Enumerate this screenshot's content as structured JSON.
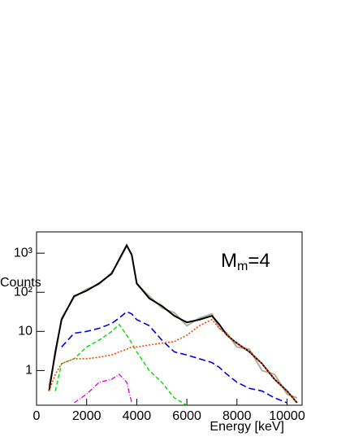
{
  "chart_data": {
    "type": "line",
    "y_label": "Counts",
    "x_label": "Energy [keV]",
    "annotation": {
      "main": "M",
      "sub": "m",
      "rest": "=4"
    },
    "log_y": true,
    "xlim": [
      0,
      10600
    ],
    "ylim": [
      0.13,
      3500
    ],
    "xticks": [
      0,
      2000,
      4000,
      6000,
      8000,
      10000
    ],
    "yticks": [
      1,
      10,
      {
        "value": 100,
        "label": "10²"
      },
      {
        "value": 1000,
        "label": "10³"
      }
    ],
    "x": [
      500,
      750,
      1000,
      1500,
      2000,
      2500,
      3000,
      3300,
      3600,
      3800,
      4000,
      4500,
      5000,
      5500,
      6000,
      6500,
      7000,
      7300,
      7600,
      8000,
      8500,
      9000,
      9500,
      10000,
      10400
    ],
    "series": [
      {
        "color": "#b5aca0",
        "dash": "none",
        "width": 2,
        "values": [
          0.4,
          2.5,
          22,
          75,
          120,
          160,
          320,
          650,
          1500,
          950,
          160,
          80,
          40,
          30,
          14,
          22,
          28,
          12,
          9,
          4,
          3.5,
          1,
          0.8,
          0.25,
          0.2
        ]
      },
      {
        "color": "#000000",
        "dash": "none",
        "width": 2,
        "values": [
          0.3,
          3,
          20,
          80,
          110,
          170,
          300,
          700,
          1600,
          900,
          170,
          70,
          45,
          25,
          17,
          20,
          25,
          15,
          8,
          5,
          3,
          1.5,
          0.6,
          0.3,
          0.15
        ]
      },
      {
        "color": "#0000ee",
        "dash": "8,4",
        "width": 1.6,
        "values": [
          null,
          null,
          4,
          9,
          10,
          12,
          16,
          22,
          32,
          28,
          20,
          14,
          6,
          3,
          2.5,
          2,
          1.6,
          1.2,
          0.8,
          0.5,
          0.35,
          0.3,
          0.2,
          0.15,
          null
        ]
      },
      {
        "color": "#00dd00",
        "dash": "5,3",
        "width": 1.4,
        "values": [
          null,
          0.3,
          1.5,
          2,
          4,
          6,
          10,
          15,
          8,
          5,
          3,
          1,
          0.5,
          0.2,
          0.13,
          null,
          null,
          null,
          null,
          null,
          null,
          null,
          null,
          null,
          null
        ]
      },
      {
        "color": "#ff4400",
        "dash": "2,2",
        "width": 1.6,
        "values": [
          0.3,
          0.8,
          1.5,
          2,
          2,
          2.2,
          2.5,
          3,
          3.5,
          4,
          4,
          4.5,
          5,
          5.5,
          8,
          14,
          20,
          12,
          8,
          5,
          3,
          1.5,
          0.6,
          0.3,
          0.15
        ]
      },
      {
        "color": "#dd00dd",
        "dash": "6,2,1,2",
        "width": 1.3,
        "values": [
          null,
          null,
          null,
          0.15,
          0.25,
          0.5,
          0.6,
          0.8,
          0.5,
          0.15,
          null,
          null,
          null,
          null,
          null,
          null,
          null,
          null,
          null,
          null,
          null,
          null,
          null,
          null,
          null
        ]
      }
    ]
  }
}
